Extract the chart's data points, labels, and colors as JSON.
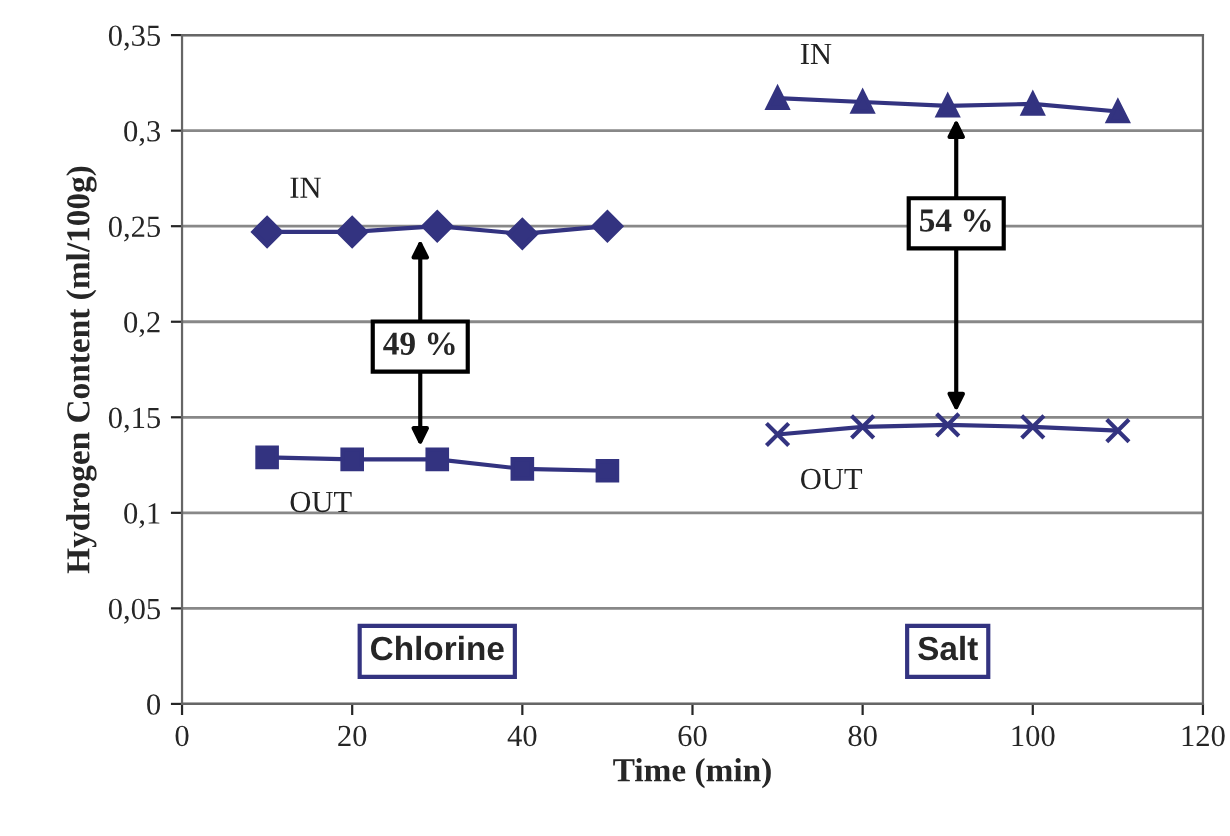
{
  "chart_data": {
    "type": "line",
    "xlabel": "Time (min)",
    "ylabel": "Hydrogen Content (ml/100g)",
    "xlim": [
      0,
      120
    ],
    "xticks": [
      0,
      20,
      40,
      60,
      80,
      100,
      120
    ],
    "ylim": [
      0,
      0.35
    ],
    "yticks": [
      {
        "value": 0,
        "label": "0"
      },
      {
        "value": 0.05,
        "label": "0,05"
      },
      {
        "value": 0.1,
        "label": "0,1"
      },
      {
        "value": 0.15,
        "label": "0,15"
      },
      {
        "value": 0.2,
        "label": "0,2"
      },
      {
        "value": 0.25,
        "label": "0,25"
      },
      {
        "value": 0.3,
        "label": "0,3"
      },
      {
        "value": 0.35,
        "label": "0,35"
      }
    ],
    "grid": "y",
    "legend": false,
    "line_style": "solid",
    "series": [
      {
        "name": "IN",
        "color": "#333380",
        "marker": "diamond",
        "x": [
          10,
          20,
          30,
          40,
          50
        ],
        "values": [
          0.247,
          0.247,
          0.25,
          0.246,
          0.25
        ]
      },
      {
        "name": "OUT",
        "color": "#333380",
        "marker": "square",
        "x": [
          10,
          20,
          30,
          40,
          50
        ],
        "values": [
          0.129,
          0.128,
          0.128,
          0.123,
          0.122
        ]
      },
      {
        "name": "IN",
        "color": "#333380",
        "marker": "triangle",
        "x": [
          70,
          80,
          90,
          100,
          110
        ],
        "values": [
          0.317,
          0.315,
          0.313,
          0.314,
          0.31
        ]
      },
      {
        "name": "OUT",
        "color": "#333380",
        "marker": "cross",
        "x": [
          70,
          80,
          90,
          100,
          110
        ],
        "values": [
          0.141,
          0.145,
          0.146,
          0.145,
          0.143
        ]
      }
    ],
    "annotations": [
      "49 %",
      "54 %",
      "Chlorine",
      "Salt"
    ]
  }
}
